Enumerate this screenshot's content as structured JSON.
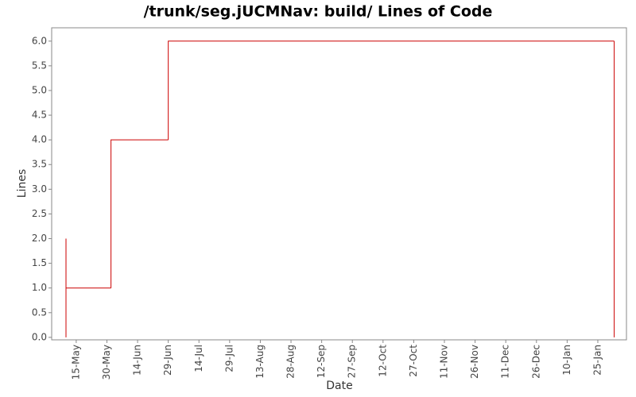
{
  "chart_data": {
    "type": "step",
    "title": "/trunk/seg.jUCMNav: build/ Lines of Code",
    "x_label": "Date",
    "y_label": "Lines",
    "x": [
      "10-May",
      "10-May",
      "10-May",
      "1-Jun",
      "29-Jun",
      "2-Feb"
    ],
    "values": [
      0,
      2,
      1,
      4,
      6,
      0
    ],
    "color": "#cc0000",
    "xlim": [
      "3-May",
      "8-Feb"
    ],
    "xticks": [
      "15-May",
      "30-May",
      "14-Jun",
      "29-Jun",
      "14-Jul",
      "29-Jul",
      "13-Aug",
      "28-Aug",
      "12-Sep",
      "27-Sep",
      "12-Oct",
      "27-Oct",
      "11-Nov",
      "26-Nov",
      "11-Dec",
      "26-Dec",
      "10-Jan",
      "25-Jan"
    ],
    "ylim": [
      -0.05,
      6.27
    ],
    "yticks": [
      {
        "value": 0,
        "label": "0.0"
      },
      {
        "value": 0.5,
        "label": "0.5"
      },
      {
        "value": 1,
        "label": "1.0"
      },
      {
        "value": 1.5,
        "label": "1.5"
      },
      {
        "value": 2,
        "label": "2.0"
      },
      {
        "value": 2.5,
        "label": "2.5"
      },
      {
        "value": 3,
        "label": "3.0"
      },
      {
        "value": 3.5,
        "label": "3.5"
      },
      {
        "value": 4,
        "label": "4.0"
      },
      {
        "value": 4.5,
        "label": "4.5"
      },
      {
        "value": 5,
        "label": "5.0"
      },
      {
        "value": 5.5,
        "label": "5.5"
      },
      {
        "value": 6,
        "label": "6.0"
      }
    ],
    "grid": false
  }
}
